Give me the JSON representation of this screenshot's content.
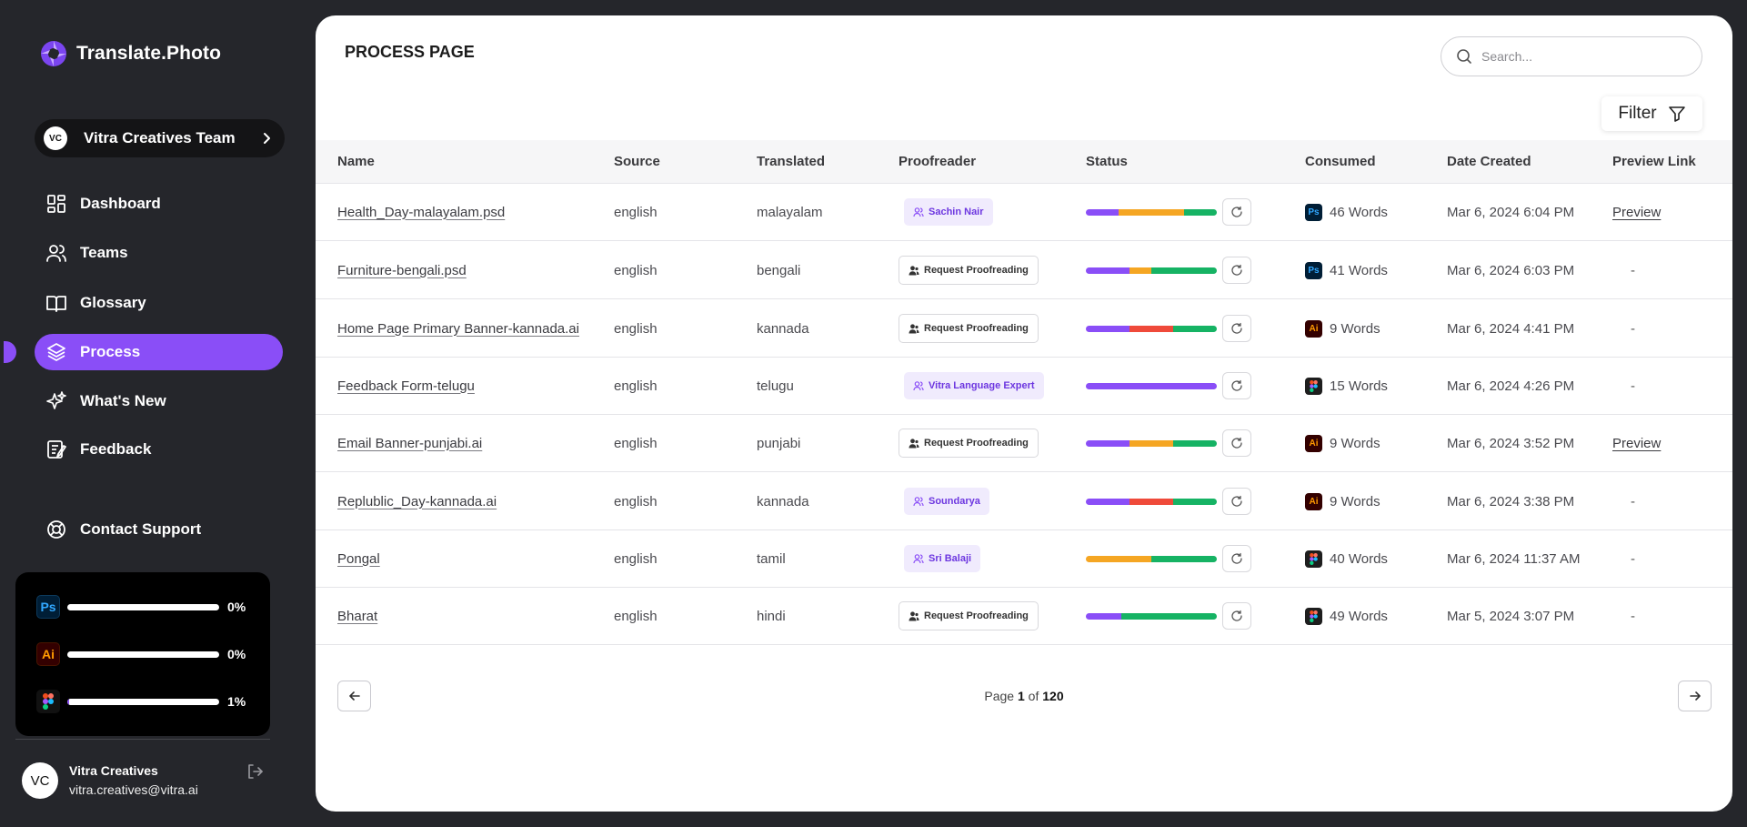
{
  "brand": {
    "name": "Translate.Photo"
  },
  "team": {
    "initials": "VC",
    "name": "Vitra Creatives Team"
  },
  "nav": {
    "items": [
      {
        "label": "Dashboard",
        "icon": "dashboard-icon",
        "active": false
      },
      {
        "label": "Teams",
        "icon": "users-icon",
        "active": false
      },
      {
        "label": "Glossary",
        "icon": "book-icon",
        "active": false
      },
      {
        "label": "Process",
        "icon": "layers-icon",
        "active": true
      },
      {
        "label": "What's New",
        "icon": "sparkle-icon",
        "active": false
      },
      {
        "label": "Feedback",
        "icon": "feedback-icon",
        "active": false
      }
    ],
    "support": {
      "label": "Contact Support",
      "icon": "lifebuoy-icon"
    }
  },
  "usage": [
    {
      "app": "Ps",
      "icon": "photoshop-icon",
      "percent": "0%",
      "fraction": 0.0
    },
    {
      "app": "Ai",
      "icon": "illustrator-icon",
      "percent": "0%",
      "fraction": 0.0
    },
    {
      "app": "Figma",
      "icon": "figma-icon",
      "percent": "1%",
      "fraction": 0.01
    }
  ],
  "user": {
    "initials": "VC",
    "name": "Vitra Creatives",
    "email": "vitra.creatives@vitra.ai"
  },
  "page": {
    "title": "PROCESS PAGE"
  },
  "search": {
    "placeholder": "Search..."
  },
  "filter": {
    "label": "Filter"
  },
  "table": {
    "columns": [
      "Name",
      "Source",
      "Translated",
      "Proofreader",
      "Status",
      "Consumed",
      "Date Created",
      "Preview Link"
    ],
    "rows": [
      {
        "name": "Health_Day-malayalam.psd",
        "source": "english",
        "translated": "malayalam",
        "proofreader": {
          "type": "assigned",
          "label": "Sachin Nair"
        },
        "status": [
          [
            "#8a4ef7",
            0.25
          ],
          [
            "#f5a623",
            0.5
          ],
          [
            "#16b364",
            0.25
          ]
        ],
        "app": "ps",
        "consumed": "46 Words",
        "date": "Mar 6, 2024 6:04 PM",
        "preview": "Preview"
      },
      {
        "name": "Furniture-bengali.psd",
        "source": "english",
        "translated": "bengali",
        "proofreader": {
          "type": "request",
          "label": "Request Proofreading"
        },
        "status": [
          [
            "#8a4ef7",
            0.33
          ],
          [
            "#f5a623",
            0.17
          ],
          [
            "#16b364",
            0.5
          ]
        ],
        "app": "ps",
        "consumed": "41 Words",
        "date": "Mar 6, 2024 6:03 PM",
        "preview": "-"
      },
      {
        "name": "Home Page Primary Banner-kannada.ai",
        "source": "english",
        "translated": "kannada",
        "proofreader": {
          "type": "request",
          "label": "Request Proofreading"
        },
        "status": [
          [
            "#8a4ef7",
            0.33
          ],
          [
            "#ef4a3a",
            0.34
          ],
          [
            "#16b364",
            0.33
          ]
        ],
        "app": "ai",
        "consumed": "9 Words",
        "date": "Mar 6, 2024 4:41 PM",
        "preview": "-"
      },
      {
        "name": "Feedback Form-telugu",
        "source": "english",
        "translated": "telugu",
        "proofreader": {
          "type": "assigned",
          "label": "Vitra Language Expert"
        },
        "status": [
          [
            "#8a4ef7",
            1.0
          ]
        ],
        "app": "fg",
        "consumed": "15 Words",
        "date": "Mar 6, 2024 4:26 PM",
        "preview": "-"
      },
      {
        "name": "Email Banner-punjabi.ai",
        "source": "english",
        "translated": "punjabi",
        "proofreader": {
          "type": "request",
          "label": "Request Proofreading"
        },
        "status": [
          [
            "#8a4ef7",
            0.33
          ],
          [
            "#f5a623",
            0.34
          ],
          [
            "#16b364",
            0.33
          ]
        ],
        "app": "ai",
        "consumed": "9 Words",
        "date": "Mar 6, 2024 3:52 PM",
        "preview": "Preview"
      },
      {
        "name": "Replublic_Day-kannada.ai",
        "source": "english",
        "translated": "kannada",
        "proofreader": {
          "type": "assigned",
          "label": "Soundarya"
        },
        "status": [
          [
            "#8a4ef7",
            0.33
          ],
          [
            "#ef4a3a",
            0.34
          ],
          [
            "#16b364",
            0.33
          ]
        ],
        "app": "ai",
        "consumed": "9 Words",
        "date": "Mar 6, 2024 3:38 PM",
        "preview": "-"
      },
      {
        "name": "Pongal",
        "source": "english",
        "translated": "tamil",
        "proofreader": {
          "type": "assigned",
          "label": "Sri Balaji"
        },
        "status": [
          [
            "#f5a623",
            0.5
          ],
          [
            "#16b364",
            0.5
          ]
        ],
        "app": "fg",
        "consumed": "40 Words",
        "date": "Mar 6, 2024 11:37 AM",
        "preview": "-"
      },
      {
        "name": "Bharat",
        "source": "english",
        "translated": "hindi",
        "proofreader": {
          "type": "request",
          "label": "Request Proofreading"
        },
        "status": [
          [
            "#8a4ef7",
            0.27
          ],
          [
            "#16b364",
            0.73
          ]
        ],
        "app": "fg",
        "consumed": "49 Words",
        "date": "Mar 5, 2024 3:07 PM",
        "preview": "-"
      }
    ]
  },
  "pagination": {
    "prefix": "Page",
    "current": "1",
    "of": "of",
    "total": "120"
  },
  "colors": {
    "accent": "#8a4ef7",
    "sidebar": "#25262b",
    "orange": "#f5a623",
    "green": "#16b364",
    "red": "#ef4a3a"
  }
}
